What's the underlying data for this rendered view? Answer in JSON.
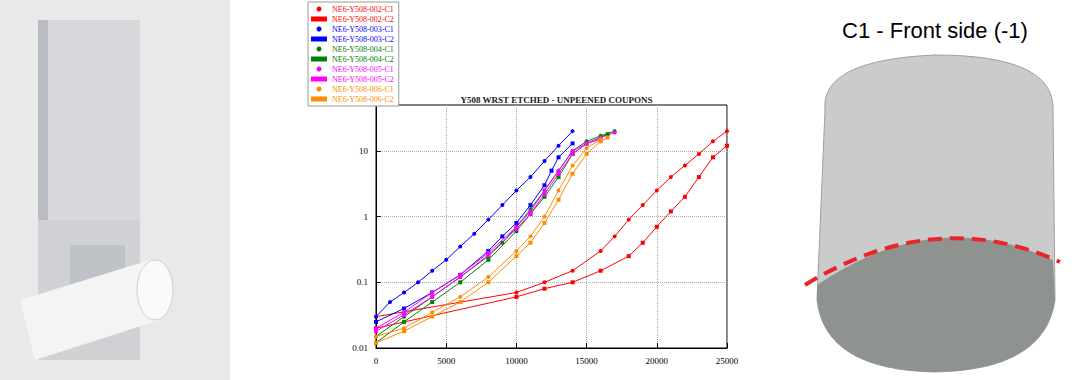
{
  "chart_data": {
    "type": "line",
    "title": "Y508 WRST ETCHED - UNPEENED COUPONS",
    "log": "y",
    "grid": true,
    "legend": "upper left",
    "xlim": [
      0,
      25000
    ],
    "xticks": [
      0,
      5000,
      10000,
      15000,
      20000,
      25000
    ],
    "ylim": [
      0.01,
      50
    ],
    "yticks": [
      0.01,
      0.1,
      1,
      10
    ],
    "series": [
      {
        "name": "NE6-Y508-002-C1",
        "color": "#ff0000",
        "marker": "circle",
        "x": [
          0,
          10000,
          12000,
          14000,
          16000,
          17000,
          18000,
          19000,
          20000,
          21000,
          22000,
          23000,
          24000,
          25000
        ],
        "values": [
          0.03,
          0.07,
          0.1,
          0.15,
          0.3,
          0.5,
          0.9,
          1.5,
          2.5,
          4,
          6,
          9,
          14,
          20
        ]
      },
      {
        "name": "NE6-Y508-002-C2",
        "color": "#ff0000",
        "marker": "square",
        "x": [
          0,
          10000,
          12000,
          14000,
          16000,
          18000,
          19000,
          20000,
          21000,
          22000,
          23000,
          24000,
          25000
        ],
        "values": [
          0.02,
          0.06,
          0.08,
          0.1,
          0.15,
          0.25,
          0.4,
          0.7,
          1.2,
          2,
          4,
          8,
          12
        ]
      },
      {
        "name": "NE6-Y508-003-C1",
        "color": "#0000ff",
        "marker": "circle",
        "x": [
          0,
          1000,
          2000,
          3000,
          4000,
          5000,
          6000,
          7000,
          8000,
          9000,
          10000,
          11000,
          12000,
          13000,
          14000
        ],
        "values": [
          0.03,
          0.05,
          0.07,
          0.1,
          0.15,
          0.22,
          0.35,
          0.55,
          0.9,
          1.5,
          2.5,
          4,
          7,
          12,
          20
        ]
      },
      {
        "name": "NE6-Y508-003-C2",
        "color": "#0000ff",
        "marker": "square",
        "x": [
          0,
          2000,
          4000,
          6000,
          8000,
          9000,
          10000,
          11000,
          12000,
          12500,
          13000,
          14000
        ],
        "values": [
          0.025,
          0.04,
          0.07,
          0.13,
          0.3,
          0.5,
          0.8,
          1.5,
          3,
          5,
          8,
          13
        ]
      },
      {
        "name": "NE6-Y508-004-C1",
        "color": "#008000",
        "marker": "circle",
        "x": [
          0,
          2000,
          4000,
          6000,
          8000,
          9000,
          10000,
          11000,
          12000,
          13000,
          14000,
          15000,
          16000,
          17000
        ],
        "values": [
          0.015,
          0.03,
          0.06,
          0.12,
          0.25,
          0.4,
          0.7,
          1.3,
          2.5,
          5,
          10,
          14,
          17,
          20
        ]
      },
      {
        "name": "NE6-Y508-004-C2",
        "color": "#008000",
        "marker": "square",
        "x": [
          0,
          2000,
          4000,
          6000,
          8000,
          10000,
          11000,
          12000,
          13000,
          14000,
          15000,
          16500
        ],
        "values": [
          0.012,
          0.025,
          0.05,
          0.1,
          0.22,
          0.6,
          1.1,
          2,
          4,
          9,
          13,
          18
        ]
      },
      {
        "name": "NE6-Y508-005-C1",
        "color": "#ff00ff",
        "marker": "circle",
        "x": [
          0,
          2000,
          4000,
          6000,
          8000,
          10000,
          11000,
          12000,
          13000,
          14000,
          15000,
          16000,
          17000
        ],
        "values": [
          0.02,
          0.035,
          0.07,
          0.13,
          0.28,
          0.7,
          1.2,
          2.5,
          5,
          10,
          13,
          16,
          19
        ]
      },
      {
        "name": "NE6-Y508-005-C2",
        "color": "#ff00ff",
        "marker": "square",
        "x": [
          0,
          2000,
          4000,
          6000,
          8000,
          10000,
          11000,
          12000,
          13000,
          14000,
          15000,
          16000
        ],
        "values": [
          0.018,
          0.032,
          0.06,
          0.12,
          0.26,
          0.65,
          1.1,
          2.2,
          4.5,
          9,
          13,
          15
        ]
      },
      {
        "name": "NE6-Y508-006-C1",
        "color": "#ff8c00",
        "marker": "circle",
        "x": [
          0,
          2000,
          4000,
          6000,
          8000,
          10000,
          11000,
          12000,
          13000,
          14000,
          15000,
          16000
        ],
        "values": [
          0.015,
          0.02,
          0.035,
          0.06,
          0.12,
          0.3,
          0.5,
          1,
          2.5,
          6,
          11,
          15
        ]
      },
      {
        "name": "NE6-Y508-006-C2",
        "color": "#ff8c00",
        "marker": "square",
        "x": [
          0,
          2000,
          4000,
          6000,
          8000,
          10000,
          11000,
          12000,
          13000,
          14000,
          15000,
          16000,
          16500
        ],
        "values": [
          0.012,
          0.018,
          0.03,
          0.05,
          0.1,
          0.25,
          0.4,
          0.8,
          1.8,
          4.5,
          9,
          14,
          16
        ]
      }
    ]
  },
  "fracture_photo": {
    "caption": "C1 - Front side (-1)"
  }
}
